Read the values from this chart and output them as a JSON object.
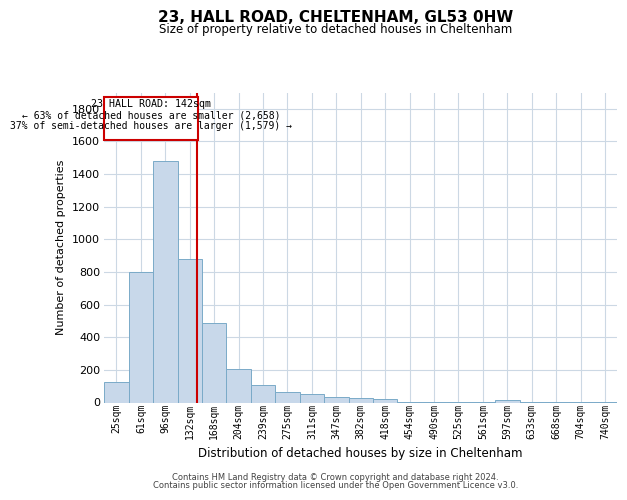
{
  "title": "23, HALL ROAD, CHELTENHAM, GL53 0HW",
  "subtitle": "Size of property relative to detached houses in Cheltenham",
  "xlabel": "Distribution of detached houses by size in Cheltenham",
  "ylabel": "Number of detached properties",
  "categories": [
    "25sqm",
    "61sqm",
    "96sqm",
    "132sqm",
    "168sqm",
    "204sqm",
    "239sqm",
    "275sqm",
    "311sqm",
    "347sqm",
    "382sqm",
    "418sqm",
    "454sqm",
    "490sqm",
    "525sqm",
    "561sqm",
    "597sqm",
    "633sqm",
    "668sqm",
    "704sqm",
    "740sqm"
  ],
  "values": [
    125,
    800,
    1480,
    880,
    490,
    205,
    105,
    65,
    50,
    35,
    30,
    20,
    5,
    5,
    5,
    5,
    15,
    3,
    3,
    3,
    3
  ],
  "bar_color": "#c8d8ea",
  "bar_edge_color": "#7aaac8",
  "annotation_box_color": "#cc0000",
  "ref_label": "23 HALL ROAD: 142sqm",
  "ann_line1": "← 63% of detached houses are smaller (2,658)",
  "ann_line2": "37% of semi-detached houses are larger (1,579) →",
  "ylim": [
    0,
    1900
  ],
  "yticks": [
    0,
    200,
    400,
    600,
    800,
    1000,
    1200,
    1400,
    1600,
    1800
  ],
  "footer1": "Contains HM Land Registry data © Crown copyright and database right 2024.",
  "footer2": "Contains public sector information licensed under the Open Government Licence v3.0.",
  "bg_color": "#ffffff",
  "grid_color": "#ccd8e4"
}
